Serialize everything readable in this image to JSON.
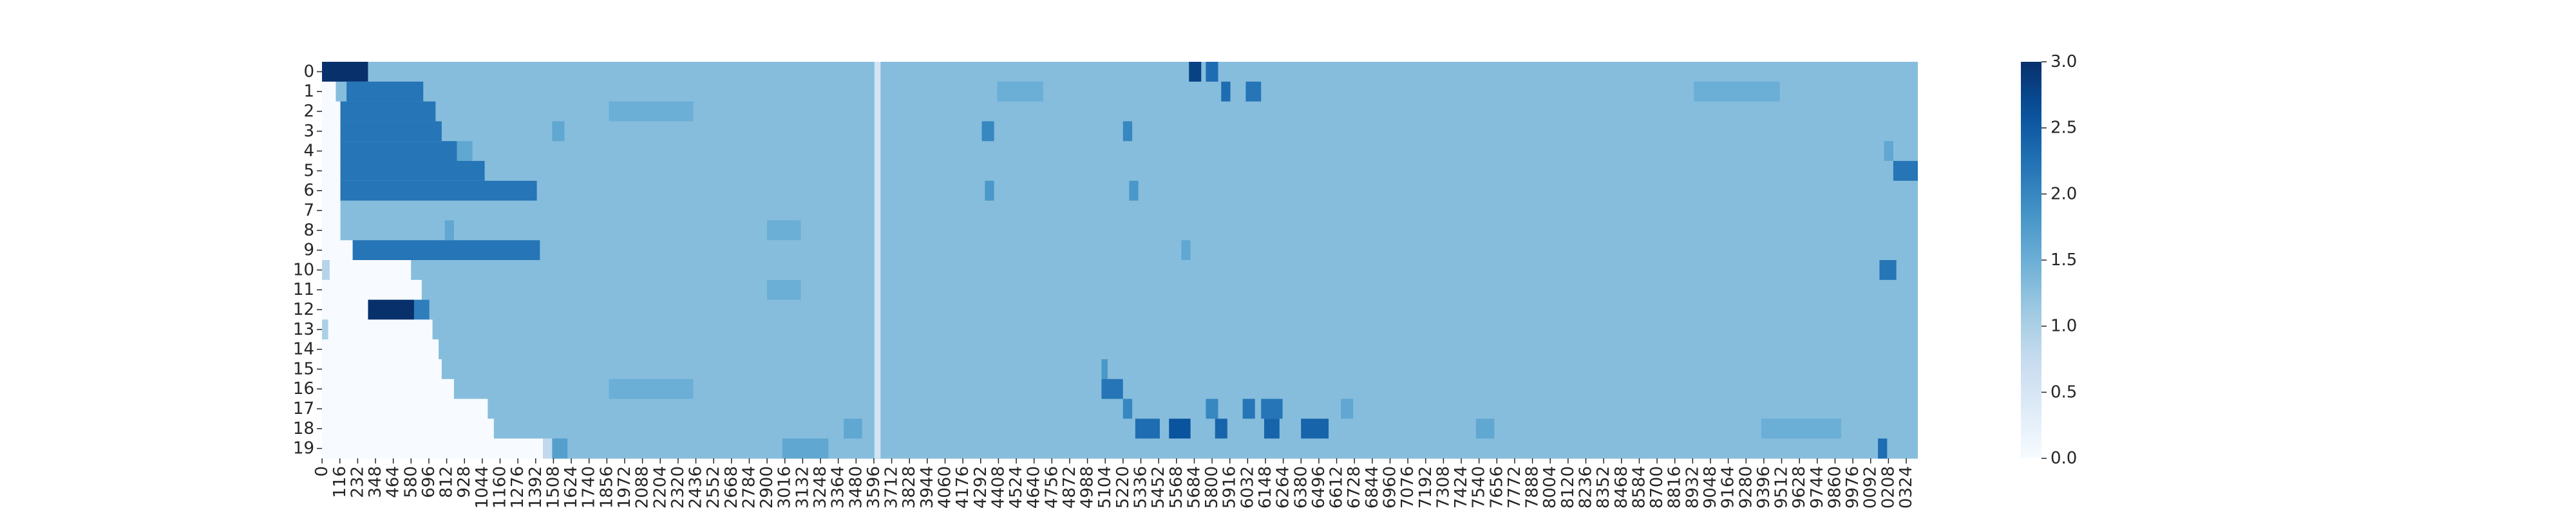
{
  "chart_data": {
    "type": "heatmap",
    "title": "",
    "xlabel": "",
    "ylabel": "",
    "rows": [
      "0",
      "1",
      "2",
      "3",
      "4",
      "5",
      "6",
      "7",
      "8",
      "9",
      "10",
      "11",
      "12",
      "13",
      "14",
      "15",
      "16",
      "17",
      "18",
      "19"
    ],
    "x_tick_labels": [
      "0",
      "116",
      "232",
      "348",
      "464",
      "580",
      "696",
      "812",
      "928",
      "1044",
      "1160",
      "1276",
      "1392",
      "1508",
      "1624",
      "1740",
      "1856",
      "1972",
      "2088",
      "2204",
      "2320",
      "2436",
      "2552",
      "2668",
      "2784",
      "2900",
      "3016",
      "3132",
      "3248",
      "3364",
      "3480",
      "3596",
      "3712",
      "3828",
      "3944",
      "4060",
      "4176",
      "4292",
      "4408",
      "4524",
      "4640",
      "4756",
      "4872",
      "4988",
      "5104",
      "5220",
      "5336",
      "5452",
      "5568",
      "5684",
      "5800",
      "5916",
      "6032",
      "6148",
      "6264",
      "6380",
      "6496",
      "6612",
      "6728",
      "6844",
      "6960",
      "7076",
      "7192",
      "7308",
      "7424",
      "7540",
      "7656",
      "7772",
      "7888",
      "8004",
      "8120",
      "8236",
      "8352",
      "8468",
      "8584",
      "8700",
      "8816",
      "8932",
      "9048",
      "9164",
      "9280",
      "9396",
      "9512",
      "9628",
      "9744",
      "9860",
      "9976",
      "0092",
      "0208",
      "0324"
    ],
    "x_tick_step": 116,
    "x_count": 10400,
    "dead_band": [
      3600,
      3640
    ],
    "background_value": 1.3,
    "row_data": [
      {
        "start": 0,
        "segments": [
          [
            0,
            300,
            3.0
          ],
          [
            5650,
            5730,
            2.8
          ],
          [
            5760,
            5840,
            2.3
          ]
        ]
      },
      {
        "start": 90,
        "segments": [
          [
            160,
            660,
            2.2
          ],
          [
            4400,
            4700,
            1.5
          ],
          [
            5860,
            5920,
            2.3
          ],
          [
            6020,
            6120,
            2.2
          ],
          [
            8940,
            9500,
            1.5
          ]
        ]
      },
      {
        "start": 120,
        "segments": [
          [
            120,
            740,
            2.2
          ],
          [
            1870,
            2420,
            1.5
          ]
        ]
      },
      {
        "start": 120,
        "segments": [
          [
            120,
            780,
            2.2
          ],
          [
            1500,
            1580,
            1.6
          ],
          [
            4300,
            4380,
            2.0
          ],
          [
            5220,
            5280,
            2.0
          ]
        ]
      },
      {
        "start": 120,
        "segments": [
          [
            120,
            880,
            2.2
          ],
          [
            880,
            980,
            1.6
          ],
          [
            10180,
            10240,
            1.6
          ]
        ]
      },
      {
        "start": 120,
        "segments": [
          [
            120,
            1060,
            2.2
          ],
          [
            10240,
            10400,
            2.2
          ]
        ]
      },
      {
        "start": 120,
        "segments": [
          [
            120,
            1400,
            2.2
          ],
          [
            4320,
            4380,
            1.8
          ],
          [
            5260,
            5320,
            1.8
          ]
        ]
      },
      {
        "start": 120,
        "segments": []
      },
      {
        "start": 120,
        "segments": [
          [
            800,
            860,
            1.6
          ],
          [
            2900,
            3120,
            1.5
          ]
        ]
      },
      {
        "start": 200,
        "segments": [
          [
            200,
            1420,
            2.2
          ],
          [
            5600,
            5660,
            1.6
          ]
        ]
      },
      {
        "start": 580,
        "segments": [
          [
            10150,
            10260,
            2.2
          ],
          [
            0,
            50,
            0.9
          ]
        ]
      },
      {
        "start": 650,
        "segments": [
          [
            2900,
            3120,
            1.5
          ]
        ]
      },
      {
        "start": 700,
        "segments": [
          [
            300,
            600,
            3.0
          ],
          [
            600,
            700,
            2.1
          ]
        ]
      },
      {
        "start": 720,
        "segments": [
          [
            0,
            40,
            1.0
          ]
        ]
      },
      {
        "start": 760,
        "segments": []
      },
      {
        "start": 780,
        "segments": [
          [
            5080,
            5120,
            1.8
          ]
        ]
      },
      {
        "start": 860,
        "segments": [
          [
            1870,
            2420,
            1.5
          ],
          [
            5080,
            5220,
            2.2
          ]
        ]
      },
      {
        "start": 1080,
        "segments": [
          [
            5220,
            5280,
            2.0
          ],
          [
            5760,
            5840,
            2.0
          ],
          [
            6000,
            6080,
            2.2
          ],
          [
            6120,
            6260,
            2.2
          ],
          [
            6640,
            6720,
            1.6
          ]
        ]
      },
      {
        "start": 1120,
        "segments": [
          [
            3400,
            3520,
            1.6
          ],
          [
            5300,
            5460,
            2.3
          ],
          [
            5520,
            5660,
            2.6
          ],
          [
            5820,
            5900,
            2.4
          ],
          [
            6140,
            6240,
            2.4
          ],
          [
            6380,
            6560,
            2.4
          ],
          [
            7520,
            7640,
            1.6
          ],
          [
            9380,
            9900,
            1.5
          ]
        ]
      },
      {
        "start": 1440,
        "segments": [
          [
            1440,
            1500,
            0.8
          ],
          [
            1500,
            1600,
            1.7
          ],
          [
            3000,
            3300,
            1.6
          ],
          [
            10140,
            10200,
            2.3
          ]
        ]
      }
    ],
    "colorbar": {
      "vmin": 0.0,
      "vmax": 3.0,
      "ticks": [
        "0.0",
        "0.5",
        "1.0",
        "1.5",
        "2.0",
        "2.5",
        "3.0"
      ]
    },
    "colormap": "Blues",
    "grid": false,
    "legend": "colorbar-right"
  }
}
